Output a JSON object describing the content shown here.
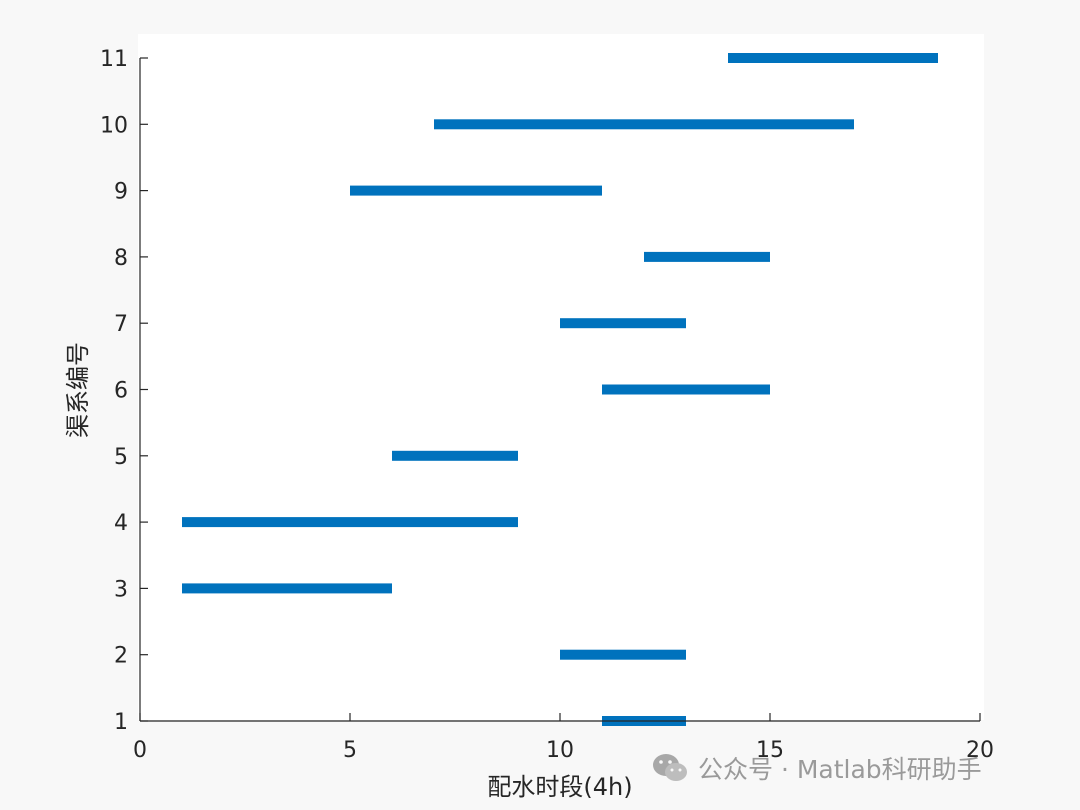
{
  "chart_data": {
    "type": "bar",
    "orientation": "horizontal-range",
    "xlabel": "配水时段(4h)",
    "ylabel": "渠系编号",
    "xlim": [
      0,
      20
    ],
    "ylim": [
      1,
      11
    ],
    "xticks": [
      0,
      5,
      10,
      15,
      20
    ],
    "yticks": [
      1,
      2,
      3,
      4,
      5,
      6,
      7,
      8,
      9,
      10,
      11
    ],
    "grid": false,
    "bar_color": "#0072BD",
    "series": [
      {
        "values": [
          {
            "y": 1,
            "start": 11,
            "end": 13
          },
          {
            "y": 2,
            "start": 10,
            "end": 13
          },
          {
            "y": 3,
            "start": 1,
            "end": 6
          },
          {
            "y": 4,
            "start": 1,
            "end": 9
          },
          {
            "y": 5,
            "start": 6,
            "end": 9
          },
          {
            "y": 6,
            "start": 11,
            "end": 15
          },
          {
            "y": 7,
            "start": 10,
            "end": 13
          },
          {
            "y": 8,
            "start": 12,
            "end": 15
          },
          {
            "y": 9,
            "start": 5,
            "end": 11
          },
          {
            "y": 10,
            "start": 7,
            "end": 17
          },
          {
            "y": 11,
            "start": 14,
            "end": 19
          }
        ]
      }
    ]
  },
  "watermark": {
    "icon": "wechat-icon",
    "text": "公众号 · Matlab科研助手"
  }
}
